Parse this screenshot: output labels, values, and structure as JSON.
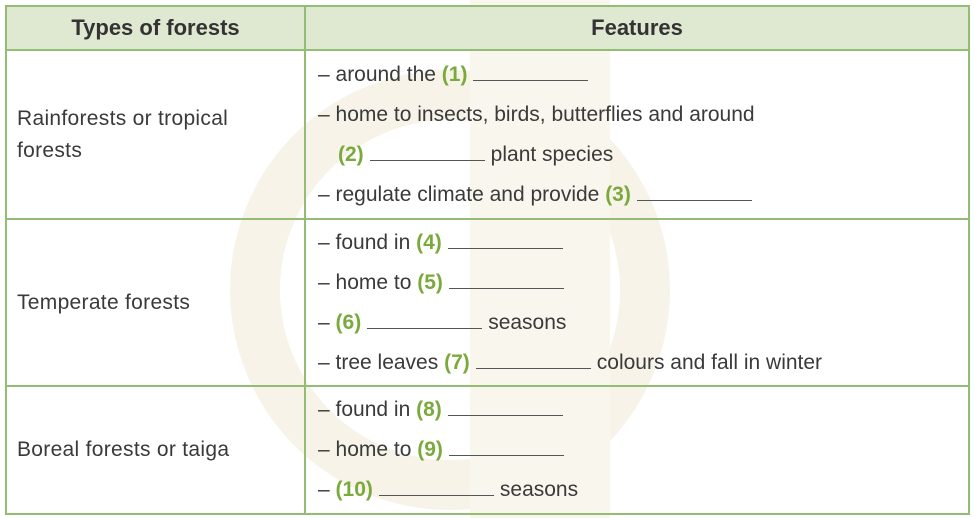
{
  "headers": {
    "type": "Types of forests",
    "features": "Features"
  },
  "rows": [
    {
      "type": "Rainforests or tropical forests",
      "lines": [
        {
          "pre": "– around the",
          "num": "(1)",
          "post": ""
        },
        {
          "pre": "– home to insects, birds, butterflies and around",
          "num": "",
          "post": ""
        },
        {
          "pre": "",
          "num": "(2)",
          "post": "plant species"
        },
        {
          "pre": "– regulate climate and provide",
          "num": "(3)",
          "post": ""
        }
      ]
    },
    {
      "type": "Temperate forests",
      "lines": [
        {
          "pre": "– found in",
          "num": "(4)",
          "post": ""
        },
        {
          "pre": "– home to",
          "num": "(5)",
          "post": ""
        },
        {
          "pre": "–",
          "num": "(6)",
          "post": "seasons"
        },
        {
          "pre": "– tree leaves",
          "num": "(7)",
          "post": "colours and fall in winter"
        }
      ]
    },
    {
      "type": "Boreal forests or taiga",
      "lines": [
        {
          "pre": "– found in",
          "num": "(8)",
          "post": ""
        },
        {
          "pre": "– home to",
          "num": "(9)",
          "post": ""
        },
        {
          "pre": "–",
          "num": "(10)",
          "post": "seasons"
        }
      ]
    }
  ],
  "colors": {
    "border": "#93bd74",
    "header_bg": "#dfe8d1",
    "number": "#7aa93c"
  }
}
